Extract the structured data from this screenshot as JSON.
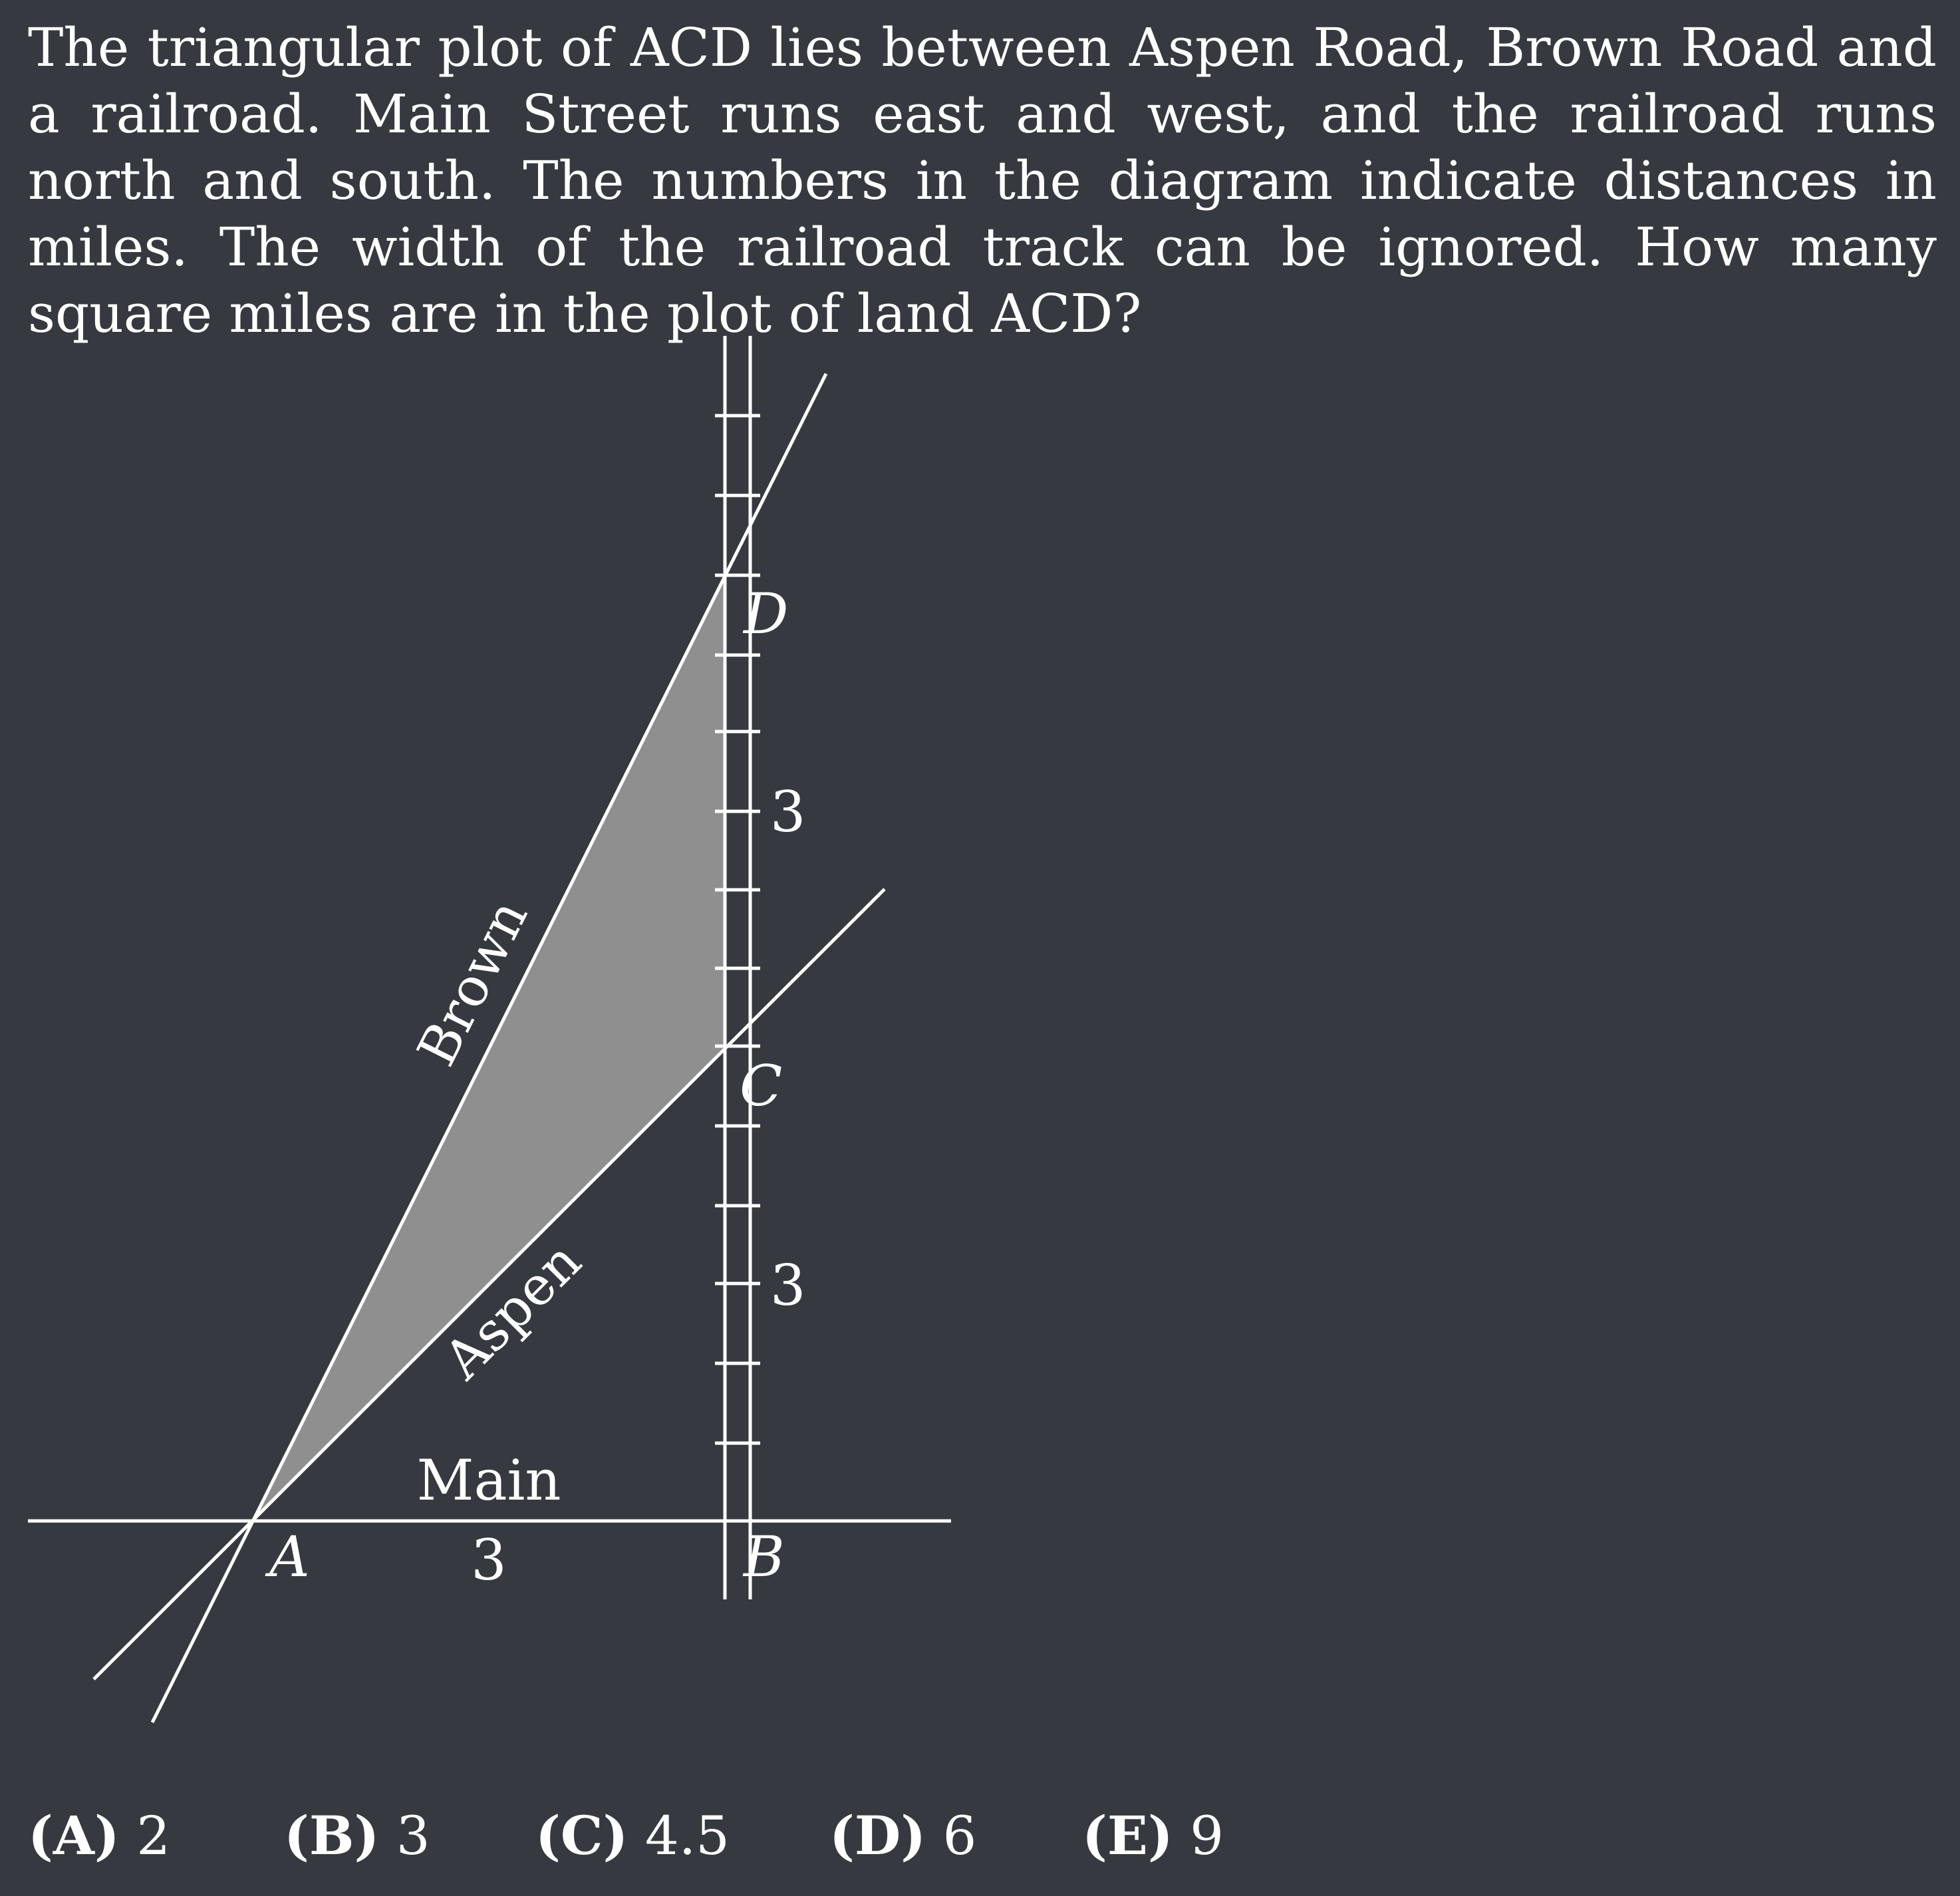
{
  "problem": {
    "text": "The triangular plot of ACD lies between Aspen Road, Brown Road and a railroad. Main Street runs east and west, and the railroad runs north and south. The numbers in the diagram indicate distances in miles. The width of the railroad track can be ignored. How many square miles are in the plot of land ACD?"
  },
  "diagram": {
    "points": {
      "A": "A",
      "B": "B",
      "C": "C",
      "D": "D"
    },
    "roads": {
      "brown": "Brown",
      "aspen": "Aspen",
      "main": "Main"
    },
    "distances": {
      "AB": "3",
      "BC": "3",
      "CD": "3"
    },
    "colors": {
      "background": "#36393f",
      "lines": "#ffffff",
      "shaded_plot": "#8f8f8f"
    }
  },
  "choices": [
    {
      "letter": "(A)",
      "value": "2"
    },
    {
      "letter": "(B)",
      "value": "3"
    },
    {
      "letter": "(C)",
      "value": "4.5"
    },
    {
      "letter": "(D)",
      "value": "6"
    },
    {
      "letter": "(E)",
      "value": "9"
    }
  ]
}
